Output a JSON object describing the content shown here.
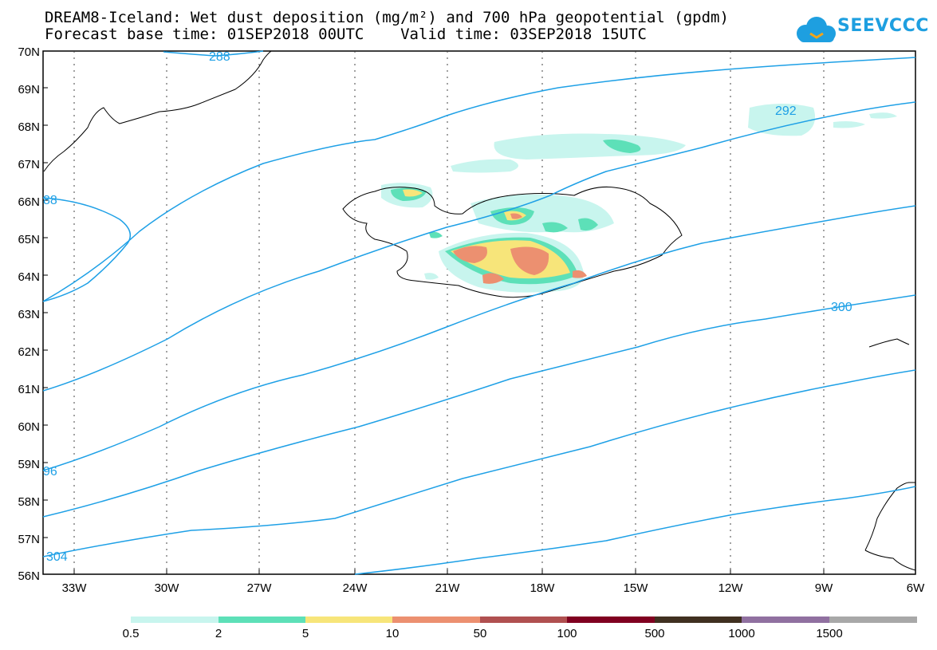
{
  "title": {
    "line1": "DREAM8-Iceland: Wet dust deposition (mg/m²) and 700 hPa geopotential (gpdm)",
    "line2": "Forecast base time: 01SEP2018 00UTC    Valid time: 03SEP2018 15UTC"
  },
  "logo": {
    "text": "SEEVCCC",
    "icon": "cloud-logo-icon",
    "color": "#1e9fe0"
  },
  "map": {
    "lat_labels": [
      "70N",
      "69N",
      "68N",
      "67N",
      "66N",
      "65N",
      "64N",
      "63N",
      "62N",
      "61N",
      "60N",
      "59N",
      "58N",
      "57N",
      "56N"
    ],
    "lon_labels": [
      "33W",
      "30W",
      "27W",
      "24W",
      "21W",
      "18W",
      "15W",
      "12W",
      "9W",
      "6W"
    ],
    "contour_color": "#1ea0e6",
    "contour_labels": [
      "288",
      "292",
      "300",
      "88",
      "96",
      "304"
    ]
  },
  "legend": {
    "colors": [
      "#c8f5ee",
      "#5de0b8",
      "#f7e57a",
      "#ec9070",
      "#b05050",
      "#800020",
      "#403020",
      "#9070a0",
      "#a8a8a8"
    ],
    "labels": [
      "0.5",
      "2",
      "5",
      "10",
      "50",
      "100",
      "500",
      "1000",
      "1500"
    ]
  }
}
